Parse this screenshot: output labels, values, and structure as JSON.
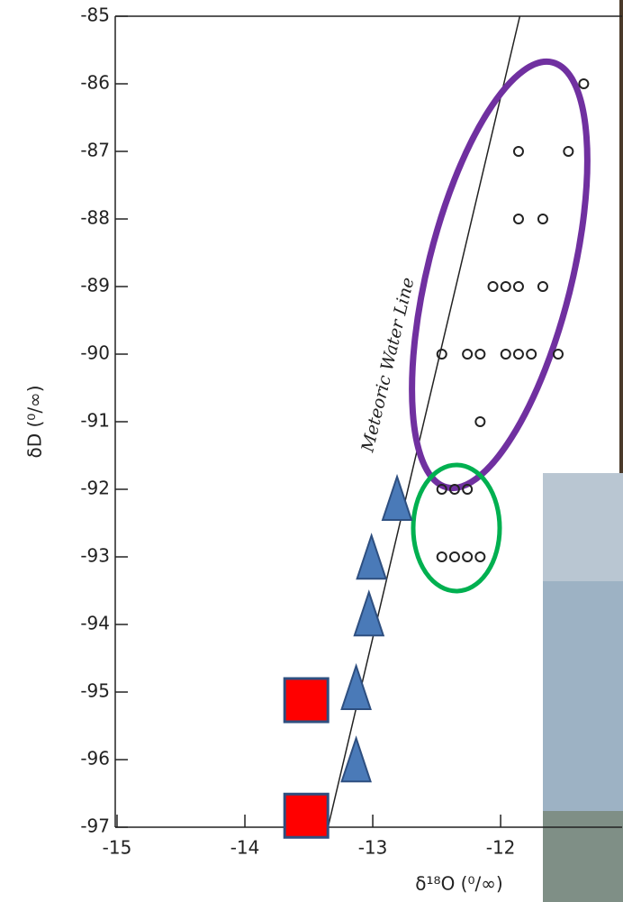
{
  "chart_data": {
    "type": "scatter",
    "xlabel": "δ¹⁸O (⁰/∞)",
    "ylabel": "δD (⁰/∞)",
    "annotation": "Meteoric Water Line",
    "xlim": [
      -15,
      -11.05
    ],
    "ylim": [
      -97,
      -85
    ],
    "xticks": [
      -15,
      -14,
      -13,
      -12
    ],
    "yticks": [
      -85,
      -86,
      -87,
      -88,
      -89,
      -90,
      -91,
      -92,
      -93,
      -94,
      -95,
      -96,
      -97
    ],
    "reference_line": {
      "x": [
        -13.35,
        -11.85
      ],
      "y": [
        -97,
        -85
      ],
      "color": "#222222"
    },
    "series": [
      {
        "marker": "circle",
        "color": "#222222",
        "x": [
          -11.35,
          -11.86,
          -11.47,
          -11.86,
          -11.67,
          -12.06,
          -11.96,
          -11.86,
          -11.67,
          -12.46,
          -12.26,
          -12.16,
          -11.96,
          -11.86,
          -11.76,
          -11.55,
          -12.16,
          -12.46,
          -12.36,
          -12.26,
          -12.46,
          -12.36,
          -12.26,
          -12.16
        ],
        "values": [
          -86,
          -87,
          -87,
          -88,
          -88,
          -89,
          -89,
          -89,
          -89,
          -90,
          -90,
          -90,
          -90,
          -90,
          -90,
          -90,
          -91,
          -92,
          -92,
          -92,
          -93,
          -93,
          -93,
          -93
        ]
      },
      {
        "marker": "triangle",
        "color": "#4a7ab8",
        "x": [
          -12.81,
          -13.01,
          -13.03,
          -13.13,
          -13.13
        ],
        "values": [
          -92.16,
          -93.03,
          -93.87,
          -94.96,
          -96.03
        ]
      },
      {
        "marker": "square",
        "color": "#ff0000",
        "x": [
          -13.52,
          -13.52
        ],
        "values": [
          -95.12,
          -96.83
        ]
      }
    ]
  }
}
